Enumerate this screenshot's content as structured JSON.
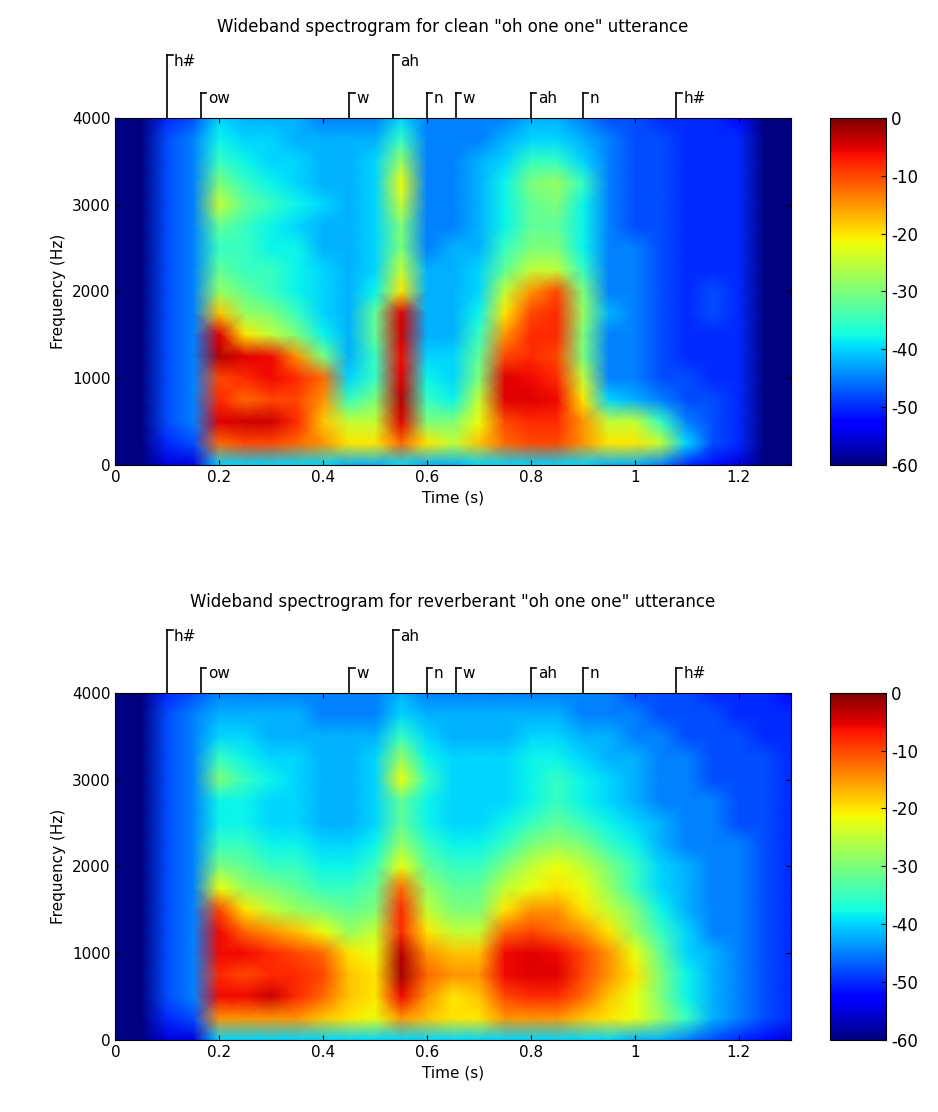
{
  "chart_data": [
    {
      "type": "heatmap",
      "title": "Wideband spectrogram for clean \"oh one one\" utterance",
      "x_label": "Time (s)",
      "y_label": "Frequency (Hz)",
      "xlim": [
        0,
        1.3
      ],
      "ylim": [
        0,
        4000
      ],
      "xticks": [
        0,
        0.2,
        0.4,
        0.6,
        0.8,
        1,
        1.2
      ],
      "yticks": [
        0,
        1000,
        2000,
        3000,
        4000
      ],
      "colorbar": {
        "range": [
          -60,
          0
        ],
        "ticks": [
          0,
          -10,
          -20,
          -30,
          -40,
          -50,
          -60
        ]
      },
      "annotations": [
        {
          "text": "h#",
          "x": 0.1
        },
        {
          "text": "ow",
          "x": 0.165
        },
        {
          "text": "w",
          "x": 0.45
        },
        {
          "text": "ah",
          "x": 0.535
        },
        {
          "text": "n",
          "x": 0.6
        },
        {
          "text": "w",
          "x": 0.655
        },
        {
          "text": "ah",
          "x": 0.8
        },
        {
          "text": "n",
          "x": 0.9
        },
        {
          "text": "h#",
          "x": 1.08
        }
      ],
      "x": [
        0,
        0.05,
        0.1,
        0.15,
        0.2,
        0.25,
        0.3,
        0.35,
        0.4,
        0.45,
        0.5,
        0.55,
        0.6,
        0.65,
        0.7,
        0.75,
        0.8,
        0.85,
        0.9,
        0.95,
        1,
        1.05,
        1.1,
        1.15,
        1.2,
        1.25,
        1.3
      ],
      "y": [
        0,
        250,
        500,
        750,
        1000,
        1250,
        1500,
        1750,
        2000,
        2250,
        2500,
        2750,
        3000,
        3250,
        3500,
        3750,
        4000
      ],
      "cells": [
        [
          -60,
          -60,
          -55,
          -55,
          -40,
          -40,
          -40,
          -40,
          -40,
          -42,
          -42,
          -40,
          -42,
          -42,
          -40,
          -40,
          -40,
          -40,
          -40,
          -42,
          -42,
          -45,
          -50,
          -52,
          -55,
          -60,
          -60
        ],
        [
          -60,
          -60,
          -50,
          -48,
          -12,
          -10,
          -10,
          -12,
          -15,
          -20,
          -20,
          -12,
          -20,
          -25,
          -18,
          -12,
          -10,
          -10,
          -15,
          -20,
          -20,
          -25,
          -40,
          -48,
          -50,
          -60,
          -60
        ],
        [
          -60,
          -60,
          -48,
          -45,
          -5,
          -4,
          -4,
          -8,
          -18,
          -25,
          -25,
          -5,
          -30,
          -30,
          -22,
          -10,
          -8,
          -8,
          -15,
          -25,
          -25,
          -35,
          -45,
          -48,
          -50,
          -60,
          -60
        ],
        [
          -60,
          -60,
          -48,
          -45,
          -8,
          -12,
          -10,
          -10,
          -15,
          -35,
          -30,
          -3,
          -35,
          -38,
          -25,
          -5,
          -5,
          -6,
          -20,
          -40,
          -42,
          -45,
          -48,
          -48,
          -50,
          -60,
          -60
        ],
        [
          -60,
          -60,
          -48,
          -45,
          -10,
          -8,
          -6,
          -8,
          -12,
          -40,
          -35,
          -5,
          -38,
          -40,
          -30,
          -5,
          -6,
          -8,
          -25,
          -45,
          -45,
          -48,
          -48,
          -50,
          -50,
          -60,
          -60
        ],
        [
          -60,
          -60,
          -48,
          -45,
          -3,
          -5,
          -6,
          -15,
          -30,
          -42,
          -35,
          -6,
          -40,
          -40,
          -32,
          -10,
          -8,
          -10,
          -30,
          -45,
          -45,
          -48,
          -50,
          -50,
          -50,
          -60,
          -60
        ],
        [
          -60,
          -60,
          -48,
          -45,
          -5,
          -20,
          -25,
          -30,
          -38,
          -42,
          -32,
          -4,
          -42,
          -42,
          -35,
          -15,
          -8,
          -8,
          -30,
          -45,
          -45,
          -48,
          -50,
          -50,
          -50,
          -60,
          -60
        ],
        [
          -60,
          -60,
          -48,
          -45,
          -18,
          -28,
          -30,
          -35,
          -40,
          -42,
          -32,
          -5,
          -42,
          -42,
          -38,
          -20,
          -10,
          -8,
          -28,
          -42,
          -45,
          -48,
          -50,
          -48,
          -50,
          -60,
          -60
        ],
        [
          -60,
          -60,
          -48,
          -45,
          -28,
          -32,
          -35,
          -38,
          -40,
          -42,
          -38,
          -20,
          -42,
          -42,
          -40,
          -25,
          -15,
          -10,
          -30,
          -45,
          -45,
          -48,
          -50,
          -48,
          -50,
          -60,
          -60
        ],
        [
          -60,
          -60,
          -48,
          -45,
          -32,
          -35,
          -35,
          -38,
          -40,
          -42,
          -40,
          -25,
          -42,
          -42,
          -40,
          -32,
          -25,
          -25,
          -35,
          -45,
          -45,
          -48,
          -50,
          -50,
          -50,
          -60,
          -60
        ],
        [
          -60,
          -60,
          -48,
          -45,
          -35,
          -35,
          -38,
          -38,
          -42,
          -42,
          -40,
          -30,
          -45,
          -42,
          -42,
          -35,
          -30,
          -30,
          -38,
          -45,
          -45,
          -48,
          -50,
          -50,
          -50,
          -60,
          -60
        ],
        [
          -60,
          -60,
          -48,
          -45,
          -32,
          -35,
          -38,
          -40,
          -42,
          -42,
          -40,
          -30,
          -45,
          -45,
          -42,
          -38,
          -32,
          -32,
          -38,
          -45,
          -48,
          -48,
          -50,
          -50,
          -50,
          -60,
          -60
        ],
        [
          -60,
          -60,
          -48,
          -45,
          -25,
          -32,
          -35,
          -38,
          -40,
          -42,
          -40,
          -25,
          -45,
          -45,
          -42,
          -38,
          -32,
          -30,
          -38,
          -45,
          -48,
          -48,
          -50,
          -50,
          -50,
          -60,
          -60
        ],
        [
          -60,
          -60,
          -48,
          -45,
          -30,
          -35,
          -38,
          -40,
          -42,
          -42,
          -40,
          -22,
          -45,
          -45,
          -42,
          -38,
          -30,
          -28,
          -35,
          -45,
          -48,
          -48,
          -50,
          -50,
          -50,
          -60,
          -60
        ],
        [
          -60,
          -60,
          -48,
          -45,
          -35,
          -38,
          -40,
          -40,
          -42,
          -42,
          -40,
          -28,
          -45,
          -45,
          -42,
          -40,
          -35,
          -35,
          -40,
          -45,
          -48,
          -48,
          -50,
          -50,
          -50,
          -60,
          -60
        ],
        [
          -60,
          -60,
          -48,
          -45,
          -38,
          -40,
          -40,
          -42,
          -42,
          -42,
          -42,
          -35,
          -45,
          -45,
          -45,
          -42,
          -40,
          -40,
          -42,
          -45,
          -48,
          -48,
          -50,
          -50,
          -50,
          -60,
          -60
        ],
        [
          -60,
          -60,
          -50,
          -48,
          -40,
          -42,
          -42,
          -42,
          -45,
          -45,
          -45,
          -40,
          -45,
          -45,
          -45,
          -45,
          -42,
          -42,
          -45,
          -48,
          -48,
          -50,
          -50,
          -50,
          -52,
          -60,
          -60
        ]
      ]
    },
    {
      "type": "heatmap",
      "title": "Wideband spectrogram for reverberant \"oh one one\" utterance",
      "x_label": "Time (s)",
      "y_label": "Frequency (Hz)",
      "xlim": [
        0,
        1.3
      ],
      "ylim": [
        0,
        4000
      ],
      "xticks": [
        0,
        0.2,
        0.4,
        0.6,
        0.8,
        1,
        1.2
      ],
      "yticks": [
        0,
        1000,
        2000,
        3000,
        4000
      ],
      "colorbar": {
        "range": [
          -60,
          0
        ],
        "ticks": [
          0,
          -10,
          -20,
          -30,
          -40,
          -50,
          -60
        ]
      },
      "annotations": [
        {
          "text": "h#",
          "x": 0.1
        },
        {
          "text": "ow",
          "x": 0.165
        },
        {
          "text": "w",
          "x": 0.45
        },
        {
          "text": "ah",
          "x": 0.535
        },
        {
          "text": "n",
          "x": 0.6
        },
        {
          "text": "w",
          "x": 0.655
        },
        {
          "text": "ah",
          "x": 0.8
        },
        {
          "text": "n",
          "x": 0.9
        },
        {
          "text": "h#",
          "x": 1.08
        }
      ],
      "x": [
        0,
        0.05,
        0.1,
        0.15,
        0.2,
        0.25,
        0.3,
        0.35,
        0.4,
        0.45,
        0.5,
        0.55,
        0.6,
        0.65,
        0.7,
        0.75,
        0.8,
        0.85,
        0.9,
        0.95,
        1,
        1.05,
        1.1,
        1.15,
        1.2,
        1.25,
        1.3
      ],
      "y": [
        0,
        250,
        500,
        750,
        1000,
        1250,
        1500,
        1750,
        2000,
        2250,
        2500,
        2750,
        3000,
        3250,
        3500,
        3750,
        4000
      ],
      "cells": [
        [
          -60,
          -60,
          -55,
          -55,
          -40,
          -40,
          -40,
          -40,
          -40,
          -40,
          -40,
          -40,
          -40,
          -40,
          -40,
          -40,
          -40,
          -40,
          -40,
          -40,
          -42,
          -42,
          -45,
          -48,
          -50,
          -52,
          -55
        ],
        [
          -60,
          -60,
          -50,
          -48,
          -15,
          -15,
          -15,
          -15,
          -18,
          -20,
          -22,
          -15,
          -18,
          -20,
          -20,
          -15,
          -15,
          -15,
          -18,
          -20,
          -22,
          -28,
          -35,
          -42,
          -45,
          -48,
          -50
        ],
        [
          -60,
          -60,
          -48,
          -45,
          -6,
          -6,
          -4,
          -8,
          -12,
          -18,
          -20,
          -6,
          -15,
          -20,
          -18,
          -10,
          -8,
          -8,
          -12,
          -18,
          -22,
          -30,
          -38,
          -42,
          -45,
          -48,
          -50
        ],
        [
          -60,
          -60,
          -48,
          -45,
          -8,
          -10,
          -8,
          -8,
          -10,
          -18,
          -20,
          -2,
          -12,
          -15,
          -15,
          -6,
          -5,
          -5,
          -10,
          -15,
          -20,
          -30,
          -38,
          -42,
          -45,
          -48,
          -50
        ],
        [
          -60,
          -60,
          -48,
          -45,
          -6,
          -6,
          -8,
          -10,
          -12,
          -20,
          -22,
          -3,
          -15,
          -18,
          -18,
          -6,
          -5,
          -6,
          -10,
          -15,
          -22,
          -32,
          -40,
          -42,
          -45,
          -48,
          -50
        ],
        [
          -60,
          -60,
          -48,
          -45,
          -6,
          -12,
          -15,
          -18,
          -22,
          -28,
          -25,
          -8,
          -20,
          -25,
          -25,
          -12,
          -10,
          -12,
          -15,
          -20,
          -28,
          -35,
          -40,
          -45,
          -45,
          -48,
          -50
        ],
        [
          -60,
          -60,
          -48,
          -45,
          -10,
          -20,
          -25,
          -28,
          -30,
          -32,
          -30,
          -8,
          -25,
          -30,
          -30,
          -20,
          -15,
          -15,
          -20,
          -25,
          -30,
          -38,
          -42,
          -45,
          -45,
          -48,
          -50
        ],
        [
          -60,
          -60,
          -48,
          -45,
          -22,
          -28,
          -30,
          -32,
          -35,
          -35,
          -32,
          -12,
          -28,
          -32,
          -32,
          -25,
          -22,
          -20,
          -22,
          -28,
          -35,
          -40,
          -42,
          -45,
          -45,
          -48,
          -50
        ],
        [
          -60,
          -60,
          -48,
          -45,
          -30,
          -32,
          -35,
          -35,
          -38,
          -38,
          -35,
          -22,
          -32,
          -35,
          -35,
          -30,
          -25,
          -22,
          -25,
          -30,
          -35,
          -40,
          -42,
          -45,
          -45,
          -48,
          -50
        ],
        [
          -60,
          -60,
          -48,
          -45,
          -35,
          -35,
          -38,
          -38,
          -40,
          -40,
          -38,
          -28,
          -35,
          -38,
          -38,
          -35,
          -30,
          -28,
          -30,
          -35,
          -38,
          -42,
          -45,
          -45,
          -45,
          -48,
          -50
        ],
        [
          -60,
          -60,
          -48,
          -45,
          -38,
          -38,
          -40,
          -40,
          -42,
          -42,
          -40,
          -32,
          -38,
          -40,
          -40,
          -38,
          -35,
          -32,
          -35,
          -38,
          -40,
          -42,
          -45,
          -45,
          -48,
          -48,
          -50
        ],
        [
          -60,
          -60,
          -48,
          -45,
          -38,
          -38,
          -40,
          -40,
          -42,
          -42,
          -40,
          -32,
          -38,
          -40,
          -40,
          -40,
          -38,
          -35,
          -38,
          -40,
          -42,
          -45,
          -45,
          -45,
          -48,
          -48,
          -50
        ],
        [
          -60,
          -60,
          -48,
          -45,
          -30,
          -35,
          -38,
          -40,
          -42,
          -42,
          -40,
          -22,
          -35,
          -40,
          -40,
          -40,
          -38,
          -35,
          -38,
          -40,
          -42,
          -45,
          -45,
          -48,
          -48,
          -48,
          -50
        ],
        [
          -60,
          -60,
          -48,
          -45,
          -35,
          -38,
          -40,
          -40,
          -42,
          -42,
          -40,
          -28,
          -38,
          -40,
          -40,
          -40,
          -38,
          -38,
          -40,
          -42,
          -42,
          -45,
          -45,
          -48,
          -48,
          -48,
          -50
        ],
        [
          -60,
          -60,
          -48,
          -45,
          -40,
          -40,
          -42,
          -42,
          -42,
          -42,
          -42,
          -35,
          -40,
          -42,
          -42,
          -42,
          -40,
          -40,
          -42,
          -42,
          -45,
          -45,
          -48,
          -48,
          -48,
          -50,
          -50
        ],
        [
          -60,
          -60,
          -48,
          -45,
          -42,
          -42,
          -42,
          -42,
          -45,
          -45,
          -45,
          -40,
          -42,
          -42,
          -42,
          -42,
          -42,
          -42,
          -45,
          -45,
          -45,
          -48,
          -48,
          -48,
          -50,
          -50,
          -50
        ],
        [
          -60,
          -60,
          -50,
          -48,
          -45,
          -45,
          -45,
          -45,
          -45,
          -45,
          -45,
          -42,
          -45,
          -45,
          -45,
          -45,
          -45,
          -45,
          -45,
          -45,
          -48,
          -48,
          -48,
          -50,
          -50,
          -50,
          -52
        ]
      ]
    }
  ]
}
